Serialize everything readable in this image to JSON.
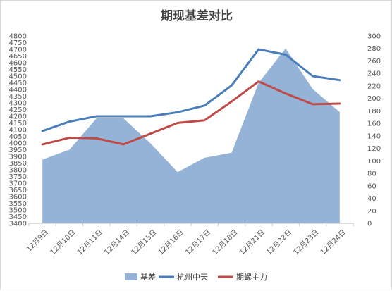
{
  "chart_data": {
    "type": "area+line",
    "title": "期现基差对比",
    "categories": [
      "12月9日",
      "12月10日",
      "12月11日",
      "12月14日",
      "12月15日",
      "12月16日",
      "12月17日",
      "12月18日",
      "12月21日",
      "12月22日",
      "12月23日",
      "12月24日"
    ],
    "left_axis": {
      "min": 3400,
      "max": 4800,
      "step": 50
    },
    "right_axis": {
      "min": 0,
      "max": 300,
      "step": 20
    },
    "grid": false,
    "legend_position": "bottom",
    "series": [
      {
        "name": "基差",
        "kind": "area",
        "axis": "right",
        "color": "#95b3d7",
        "values": [
          102,
          118,
          168,
          168,
          128,
          82,
          105,
          113,
          225,
          280,
          215,
          178
        ]
      },
      {
        "name": "杭州中天",
        "kind": "line",
        "axis": "left",
        "color": "#4a7ebb",
        "values": [
          4090,
          4160,
          4200,
          4200,
          4200,
          4230,
          4280,
          4430,
          4700,
          4660,
          4500,
          4470
        ]
      },
      {
        "name": "期螺主力",
        "kind": "line",
        "axis": "left",
        "color": "#be4b48",
        "values": [
          3990,
          4040,
          4035,
          3990,
          4070,
          4150,
          4170,
          4310,
          4460,
          4370,
          4290,
          4295
        ]
      }
    ]
  }
}
